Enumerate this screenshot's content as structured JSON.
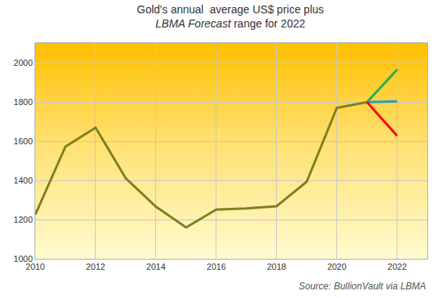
{
  "chart_data": {
    "type": "line",
    "title": "Gold's annual  average US$ price plus",
    "subtitle": "LBMA Forecast range for 2022",
    "annotations": [
      "Source: BullionVault via LBMA"
    ],
    "series": [
      {
        "color": "#7f7f1f",
        "x": [
          2010,
          2011,
          2012,
          2013,
          2014,
          2015,
          2016,
          2017,
          2018,
          2019,
          2020,
          2021
        ],
        "values": [
          1225,
          1572,
          1669,
          1411,
          1266,
          1160,
          1251,
          1257,
          1268,
          1393,
          1770,
          1799
        ]
      },
      {
        "color": "#22b04c",
        "x": [
          2021,
          2022
        ],
        "values": [
          1799,
          1965
        ]
      },
      {
        "color": "#1a9fcf",
        "x": [
          2021,
          2022
        ],
        "values": [
          1799,
          1803
        ]
      },
      {
        "color": "#ff0000",
        "x": [
          2021,
          2022
        ],
        "values": [
          1799,
          1627
        ]
      }
    ],
    "xlim": [
      2010,
      2023
    ],
    "xticks": [
      2010,
      2012,
      2014,
      2016,
      2018,
      2020,
      2022
    ],
    "ylim": [
      1000,
      2100
    ],
    "yticks": [
      1000,
      1200,
      1400,
      1600,
      1800,
      2000
    ],
    "grid": true
  }
}
